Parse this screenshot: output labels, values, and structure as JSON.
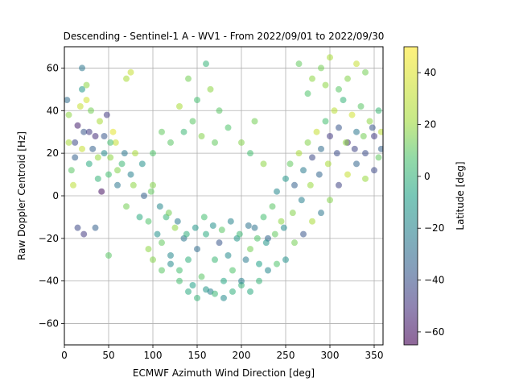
{
  "chart_data": {
    "type": "scatter",
    "title": "Descending - Sentinel-1 A - WV1 - From 2022/09/01 to 2022/09/30",
    "xlabel": "ECMWF Azimuth Wind Direction [deg]",
    "ylabel": "Raw Doppler Centroid [Hz]",
    "xlim": [
      0,
      360
    ],
    "ylim": [
      -70,
      70
    ],
    "x_ticks": [
      0,
      50,
      100,
      150,
      200,
      250,
      300,
      350
    ],
    "y_ticks": [
      -60,
      -40,
      -20,
      0,
      20,
      40,
      60
    ],
    "grid": true,
    "colorbar": {
      "label": "Latitude [deg]",
      "range": [
        -65,
        50
      ],
      "ticks": [
        -60,
        -40,
        -20,
        0,
        20,
        40
      ],
      "colormap": "viridis",
      "alpha": 0.55
    },
    "series": [
      {
        "color_by": "latitude",
        "points": [
          [
            5,
            38,
            30
          ],
          [
            12,
            25,
            -40
          ],
          [
            18,
            42,
            40
          ],
          [
            22,
            30,
            -35
          ],
          [
            28,
            15,
            5
          ],
          [
            35,
            28,
            -50
          ],
          [
            40,
            35,
            35
          ],
          [
            45,
            20,
            -10
          ],
          [
            50,
            10,
            15
          ],
          [
            55,
            30,
            45
          ],
          [
            60,
            5,
            -20
          ],
          [
            8,
            12,
            20
          ],
          [
            15,
            33,
            -55
          ],
          [
            25,
            45,
            42
          ],
          [
            32,
            22,
            -30
          ],
          [
            38,
            8,
            10
          ],
          [
            48,
            38,
            -45
          ],
          [
            52,
            18,
            30
          ],
          [
            3,
            45,
            -25
          ],
          [
            10,
            5,
            38
          ],
          [
            20,
            50,
            -5
          ],
          [
            30,
            40,
            25
          ],
          [
            42,
            2,
            -60
          ],
          [
            58,
            25,
            40
          ],
          [
            65,
            15,
            12
          ],
          [
            70,
            -5,
            25
          ],
          [
            75,
            10,
            -15
          ],
          [
            80,
            20,
            35
          ],
          [
            85,
            -10,
            5
          ],
          [
            90,
            0,
            -30
          ],
          [
            95,
            -12,
            18
          ],
          [
            100,
            5,
            28
          ],
          [
            105,
            -18,
            -8
          ],
          [
            110,
            -22,
            22
          ],
          [
            115,
            -10,
            10
          ],
          [
            120,
            -28,
            -12
          ],
          [
            125,
            -15,
            30
          ],
          [
            130,
            -35,
            15
          ],
          [
            135,
            -20,
            -20
          ],
          [
            140,
            -30,
            8
          ],
          [
            145,
            -42,
            0
          ],
          [
            150,
            -25,
            -25
          ],
          [
            155,
            -38,
            20
          ],
          [
            160,
            -18,
            5
          ],
          [
            165,
            -45,
            -15
          ],
          [
            170,
            -30,
            12
          ],
          [
            175,
            -22,
            -35
          ],
          [
            180,
            -40,
            3
          ],
          [
            185,
            -28,
            -10
          ],
          [
            190,
            -35,
            18
          ],
          [
            195,
            -20,
            -5
          ],
          [
            200,
            -42,
            10
          ],
          [
            205,
            -30,
            -18
          ],
          [
            210,
            -25,
            25
          ],
          [
            215,
            -15,
            -22
          ],
          [
            220,
            -32,
            0
          ],
          [
            225,
            -10,
            15
          ],
          [
            230,
            -20,
            -28
          ],
          [
            235,
            -5,
            20
          ],
          [
            240,
            2,
            -12
          ],
          [
            245,
            -12,
            30
          ],
          [
            250,
            8,
            -5
          ],
          [
            255,
            15,
            22
          ],
          [
            260,
            5,
            -30
          ],
          [
            265,
            20,
            35
          ],
          [
            270,
            12,
            -18
          ],
          [
            275,
            25,
            28
          ],
          [
            280,
            18,
            -40
          ],
          [
            285,
            30,
            40
          ],
          [
            290,
            22,
            -25
          ],
          [
            295,
            35,
            15
          ],
          [
            300,
            28,
            -45
          ],
          [
            305,
            40,
            38
          ],
          [
            310,
            32,
            -35
          ],
          [
            315,
            45,
            10
          ],
          [
            320,
            25,
            -50
          ],
          [
            325,
            38,
            42
          ],
          [
            330,
            30,
            -20
          ],
          [
            335,
            42,
            20
          ],
          [
            340,
            20,
            -38
          ],
          [
            345,
            35,
            30
          ],
          [
            350,
            28,
            -45
          ],
          [
            355,
            40,
            12
          ],
          [
            358,
            22,
            -30
          ],
          [
            140,
            55,
            25
          ],
          [
            150,
            45,
            15
          ],
          [
            165,
            50,
            30
          ],
          [
            175,
            40,
            20
          ],
          [
            130,
            42,
            35
          ],
          [
            160,
            62,
            10
          ],
          [
            145,
            35,
            20
          ],
          [
            155,
            28,
            28
          ],
          [
            135,
            30,
            12
          ],
          [
            170,
            25,
            22
          ],
          [
            185,
            32,
            18
          ],
          [
            200,
            25,
            28
          ],
          [
            210,
            20,
            15
          ],
          [
            215,
            35,
            25
          ],
          [
            225,
            15,
            30
          ],
          [
            120,
            25,
            20
          ],
          [
            110,
            30,
            22
          ],
          [
            100,
            20,
            18
          ],
          [
            280,
            55,
            30
          ],
          [
            290,
            60,
            25
          ],
          [
            300,
            65,
            35
          ],
          [
            310,
            50,
            20
          ],
          [
            320,
            55,
            28
          ],
          [
            330,
            62,
            40
          ],
          [
            265,
            62,
            22
          ],
          [
            275,
            48,
            18
          ],
          [
            295,
            52,
            30
          ],
          [
            340,
            58,
            25
          ],
          [
            20,
            60,
            -20
          ],
          [
            75,
            58,
            40
          ],
          [
            70,
            55,
            35
          ],
          [
            25,
            52,
            30
          ],
          [
            15,
            -15,
            -40
          ],
          [
            22,
            -18,
            -45
          ],
          [
            50,
            -28,
            20
          ],
          [
            35,
            -15,
            -30
          ],
          [
            95,
            -25,
            30
          ],
          [
            100,
            -30,
            28
          ],
          [
            110,
            -35,
            20
          ],
          [
            120,
            -32,
            -10
          ],
          [
            130,
            -40,
            15
          ],
          [
            140,
            -45,
            5
          ],
          [
            150,
            -48,
            10
          ],
          [
            160,
            -44,
            -5
          ],
          [
            170,
            -46,
            12
          ],
          [
            180,
            -48,
            -10
          ],
          [
            190,
            -45,
            8
          ],
          [
            200,
            -40,
            -15
          ],
          [
            210,
            -45,
            5
          ],
          [
            220,
            -40,
            10
          ],
          [
            230,
            -35,
            -12
          ],
          [
            240,
            -32,
            18
          ],
          [
            250,
            -30,
            -8
          ],
          [
            260,
            -22,
            25
          ],
          [
            270,
            -18,
            -35
          ],
          [
            280,
            -12,
            35
          ],
          [
            290,
            -8,
            -20
          ],
          [
            300,
            -2,
            28
          ],
          [
            310,
            5,
            -42
          ],
          [
            320,
            10,
            40
          ],
          [
            330,
            15,
            -28
          ],
          [
            340,
            8,
            32
          ],
          [
            350,
            12,
            -40
          ],
          [
            355,
            18,
            22
          ],
          [
            5,
            25,
            35
          ],
          [
            12,
            18,
            -30
          ],
          [
            20,
            22,
            40
          ],
          [
            28,
            30,
            -45
          ],
          [
            38,
            18,
            32
          ],
          [
            45,
            28,
            -35
          ],
          [
            52,
            25,
            15
          ],
          [
            60,
            12,
            28
          ],
          [
            68,
            20,
            -20
          ],
          [
            78,
            5,
            30
          ],
          [
            88,
            15,
            -8
          ],
          [
            98,
            2,
            22
          ],
          [
            108,
            -5,
            -12
          ],
          [
            118,
            -8,
            25
          ],
          [
            128,
            -12,
            -18
          ],
          [
            138,
            -18,
            8
          ],
          [
            148,
            -15,
            -5
          ],
          [
            158,
            -10,
            15
          ],
          [
            168,
            -14,
            -8
          ],
          [
            178,
            -16,
            20
          ],
          [
            188,
            -12,
            -14
          ],
          [
            198,
            -18,
            12
          ],
          [
            208,
            -14,
            -22
          ],
          [
            218,
            -20,
            18
          ],
          [
            228,
            -22,
            -5
          ],
          [
            238,
            -18,
            22
          ],
          [
            248,
            -15,
            -10
          ],
          [
            258,
            -8,
            28
          ],
          [
            268,
            -2,
            -15
          ],
          [
            278,
            5,
            32
          ],
          [
            288,
            10,
            -28
          ],
          [
            298,
            15,
            35
          ],
          [
            308,
            20,
            -38
          ],
          [
            318,
            25,
            30
          ],
          [
            328,
            22,
            -42
          ],
          [
            338,
            28,
            25
          ],
          [
            348,
            32,
            -35
          ],
          [
            358,
            30,
            38
          ]
        ]
      }
    ]
  }
}
